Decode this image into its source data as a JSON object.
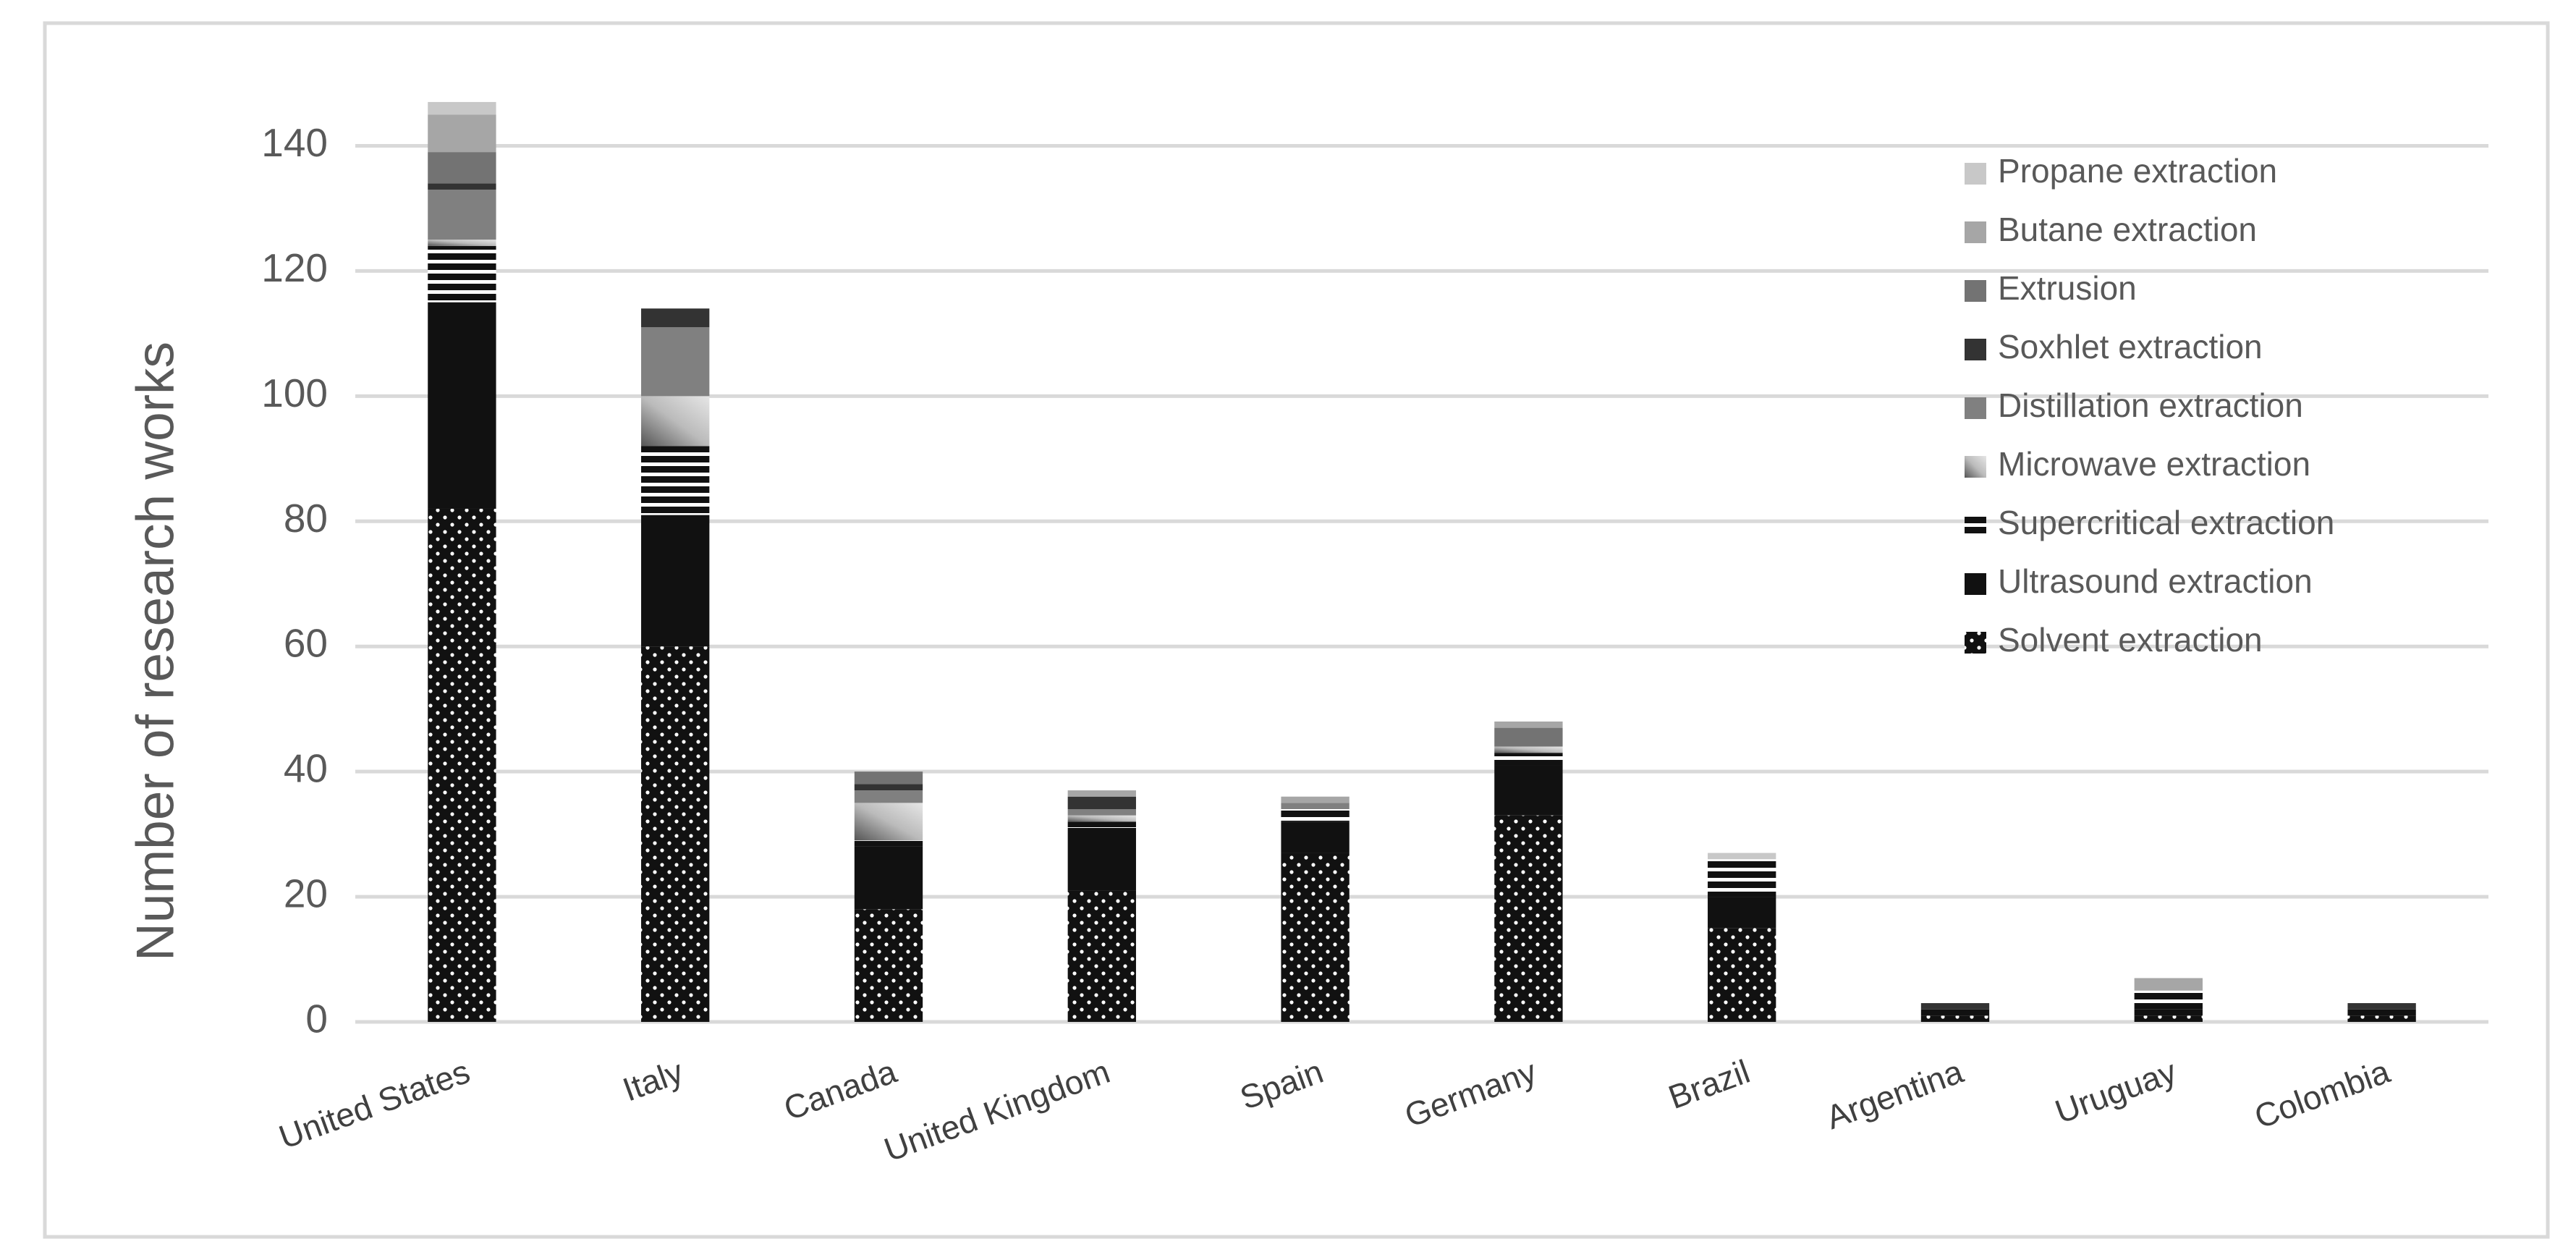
{
  "chart_data": {
    "type": "bar",
    "stacked": true,
    "y_label": "Number of research works",
    "categories": [
      "United States",
      "Italy",
      "Canada",
      "United Kingdom",
      "Spain",
      "Germany",
      "Brazil",
      "Argentina",
      "Uruguay",
      "Colombia"
    ],
    "series": [
      {
        "name": "Solvent extraction",
        "color": "#111111",
        "pattern": "dots",
        "values": [
          82,
          60,
          18,
          21,
          27,
          33,
          15,
          1,
          1,
          1
        ]
      },
      {
        "name": "Ultrasound extraction",
        "color": "#111111",
        "values": [
          33,
          21,
          10,
          10,
          5,
          8,
          5,
          1,
          1,
          1
        ]
      },
      {
        "name": "Supercritical extraction",
        "color": "#111111",
        "pattern": "stripes",
        "values": [
          9,
          11,
          1,
          1,
          2,
          2,
          6,
          0,
          3,
          0
        ]
      },
      {
        "name": "Microwave extraction",
        "color": "#bfbfbf",
        "pattern": "gradient",
        "values": [
          1,
          8,
          6,
          1,
          0,
          1,
          0,
          0,
          0,
          0
        ]
      },
      {
        "name": "Distillation extraction",
        "color": "#808080",
        "values": [
          8,
          11,
          2,
          1,
          1,
          0,
          0,
          0,
          0,
          0
        ]
      },
      {
        "name": "Soxhlet extraction",
        "color": "#333333",
        "values": [
          1,
          3,
          1,
          2,
          0,
          0,
          0,
          1,
          0,
          1
        ]
      },
      {
        "name": "Extrusion",
        "color": "#737373",
        "values": [
          5,
          0,
          2,
          0,
          0,
          3,
          0,
          0,
          0,
          0
        ]
      },
      {
        "name": "Butane extraction",
        "color": "#a6a6a6",
        "values": [
          6,
          0,
          0,
          1,
          1,
          1,
          0,
          0,
          2,
          0
        ]
      },
      {
        "name": "Propane extraction",
        "color": "#c8c8c8",
        "values": [
          2,
          0,
          0,
          0,
          0,
          0,
          1,
          0,
          0,
          0
        ]
      }
    ],
    "ylim": [
      0,
      150
    ],
    "yticks": [
      0,
      20,
      40,
      60,
      80,
      100,
      120,
      140
    ],
    "grid": true,
    "legend": "upper right"
  }
}
